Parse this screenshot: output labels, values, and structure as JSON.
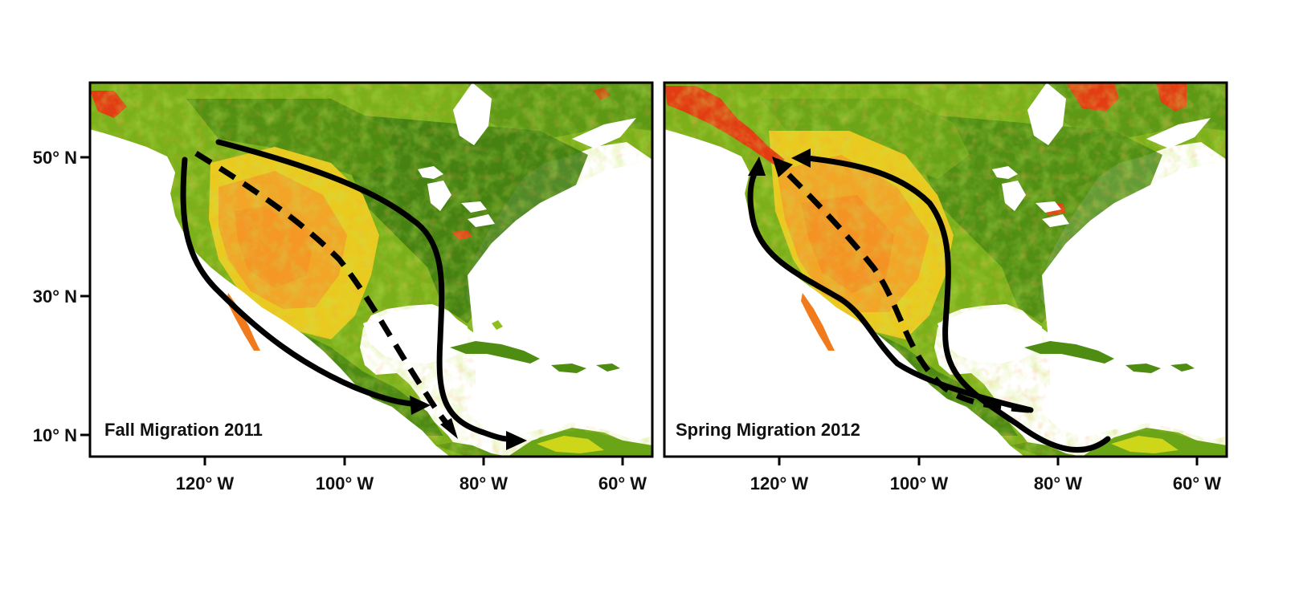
{
  "figure": {
    "latitude_labels": [
      "50° N",
      "30° N",
      "10° N"
    ],
    "longitude_labels": [
      "120° W",
      "100° W",
      "80° W",
      "60° W"
    ],
    "colors": {
      "forest": "#3f7d12",
      "grass": "#8fbf1e",
      "yellow": "#e6e219",
      "orange": "#f4a31f",
      "red": "#e23d12",
      "water": "#ffffff",
      "routes": "#000000"
    }
  },
  "panels": [
    {
      "id": "fall",
      "label": "Fall Migration 2011",
      "routes": [
        "solid-pacific",
        "dashed-interior",
        "solid-eastern"
      ]
    },
    {
      "id": "spring",
      "label": "Spring Migration 2012",
      "routes": [
        "solid-pacific",
        "dashed-interior",
        "solid-eastern"
      ]
    }
  ]
}
